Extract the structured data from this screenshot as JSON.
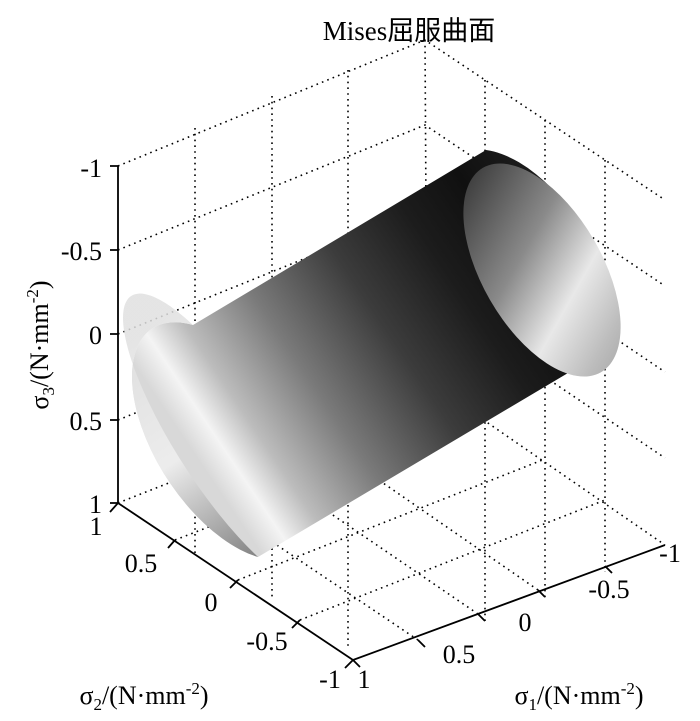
{
  "chart_data": {
    "type": "surface",
    "title": "Mises屈服曲面",
    "xlabel": "σ1/(N·mm-2)",
    "ylabel": "σ2/(N·mm-2)",
    "zlabel": "σ3/(N·mm-2)",
    "x_ticks": [
      "1",
      "0.5",
      "0",
      "-0.5",
      "-1"
    ],
    "y_ticks": [
      "1",
      "0.5",
      "0",
      "-0.5",
      "-1"
    ],
    "z_ticks": [
      "-1",
      "-0.5",
      "0",
      "0.5",
      "1"
    ],
    "xlim": [
      -1,
      1
    ],
    "ylim": [
      -1,
      1
    ],
    "zlim": [
      -1,
      1
    ],
    "grid": true,
    "colormap": "gray",
    "surface": "cylinder along hydrostatic axis (Mises yield surface)"
  }
}
